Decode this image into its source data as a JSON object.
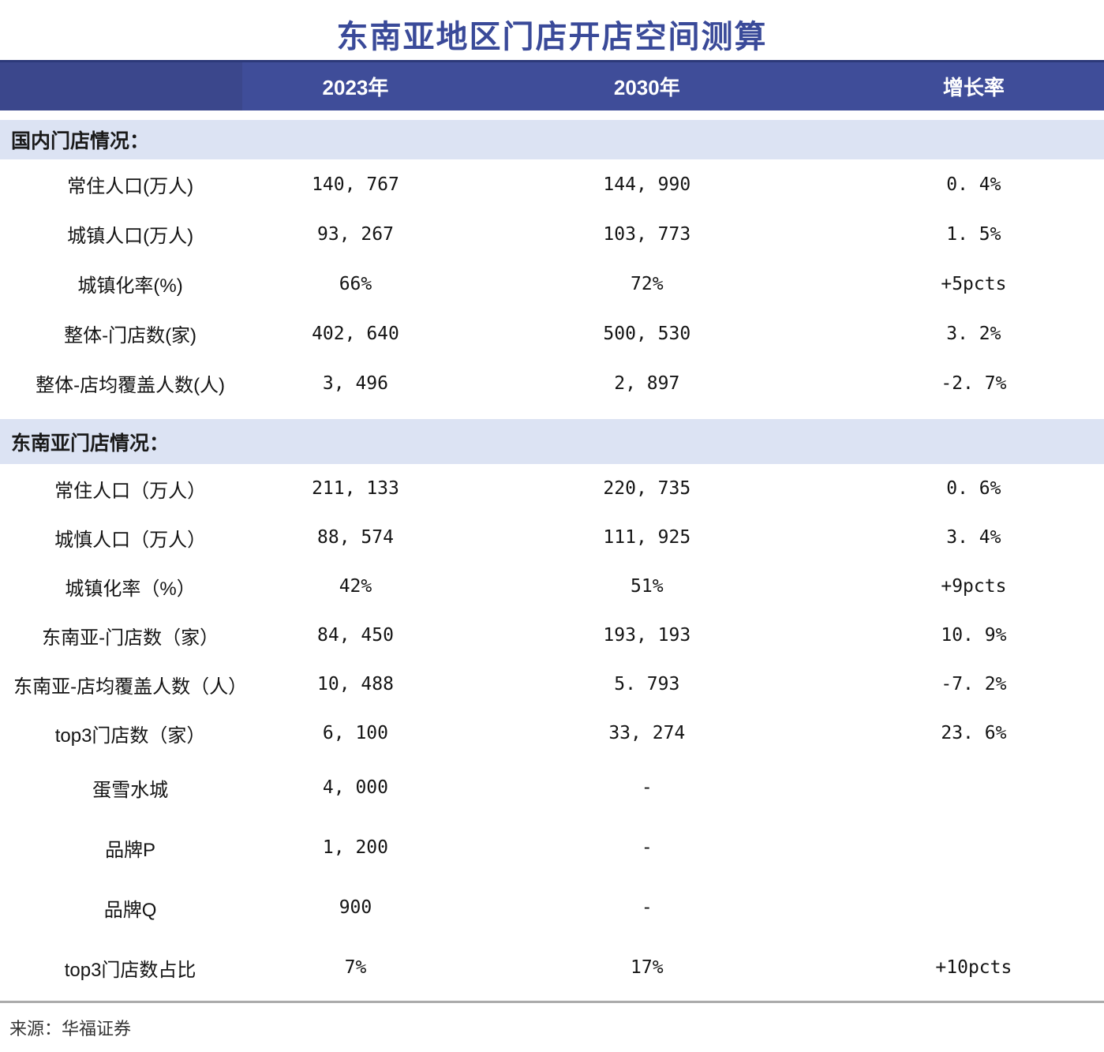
{
  "chart_data": {
    "type": "table",
    "title": "东南亚地区门店开店空间测算",
    "columns": [
      "",
      "2023年",
      "2030年",
      "增长率"
    ],
    "sections": [
      {
        "header": "国内门店情况：",
        "rows": [
          {
            "label": "常住人口(万人)",
            "y2023": "140, 767",
            "y2030": "144, 990",
            "growth": "0. 4%"
          },
          {
            "label": "城镇人口(万人)",
            "y2023": "93, 267",
            "y2030": "103, 773",
            "growth": "1. 5%"
          },
          {
            "label": "城镇化率(%)",
            "y2023": "66%",
            "y2030": "72%",
            "growth": "+5pcts"
          },
          {
            "label": "整体-门店数(家)",
            "y2023": "402, 640",
            "y2030": "500, 530",
            "growth": "3. 2%"
          },
          {
            "label": "整体-店均覆盖人数(人)",
            "y2023": "3, 496",
            "y2030": "2, 897",
            "growth": "-2. 7%"
          }
        ]
      },
      {
        "header": "东南亚门店情况：",
        "rows": [
          {
            "label": "常住人口（万人）",
            "y2023": "211, 133",
            "y2030": "220, 735",
            "growth": "0. 6%"
          },
          {
            "label": "城慎人口（万人）",
            "y2023": "88, 574",
            "y2030": "111, 925",
            "growth": "3. 4%"
          },
          {
            "label": "城镇化率（%）",
            "y2023": "42%",
            "y2030": "51%",
            "growth": "+9pcts"
          },
          {
            "label": "东南亚-门店数（家）",
            "y2023": "84, 450",
            "y2030": "193, 193",
            "growth": "10. 9%"
          },
          {
            "label": "东南亚-店均覆盖人数（人）",
            "y2023": "10, 488",
            "y2030": "5. 793",
            "growth": "-7. 2%"
          },
          {
            "label": "top3门店数（家）",
            "y2023": "6, 100",
            "y2030": "33, 274",
            "growth": "23. 6%"
          },
          {
            "label": "蛋雪水城",
            "y2023": "4, 000",
            "y2030": "-",
            "growth": ""
          },
          {
            "label": "品牌P",
            "y2023": "1, 200",
            "y2030": "-",
            "growth": ""
          },
          {
            "label": "品牌Q",
            "y2023": "900",
            "y2030": "-",
            "growth": ""
          },
          {
            "label": "top3门店数占比",
            "y2023": "7%",
            "y2030": "17%",
            "growth": "+10pcts"
          }
        ]
      }
    ],
    "source_note": "来源：华福证券",
    "colors": {
      "title": "#3A4A99",
      "header_bg": "#3F4D99",
      "header_bg_left": "#3B478C",
      "header_text": "#FFFFFF",
      "section_bg": "#DCE3F3",
      "body_text": "#141414",
      "divider": "#ABABAB"
    }
  }
}
